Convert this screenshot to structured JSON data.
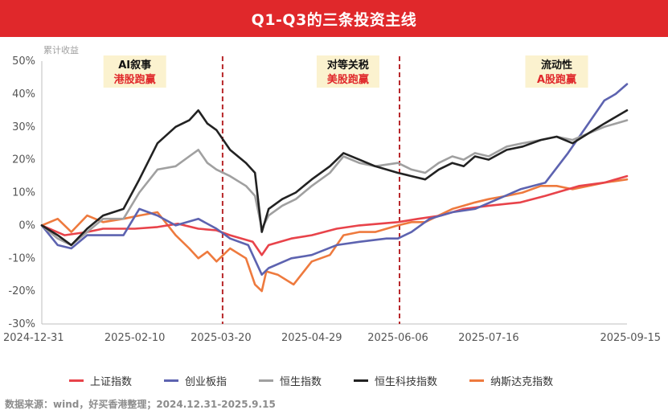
{
  "header": {
    "title": "Q1-Q3的三条投资主线"
  },
  "source": "数据来源：wind，好买香港整理；2024.12.31-2025.9.15",
  "colors": {
    "banner": "#e0282b",
    "shanghai": "#e8434a",
    "chinext": "#5d63b0",
    "hsi": "#a0a0a0",
    "hstech": "#222222",
    "nasdaq": "#ee7a3e",
    "divider": "#b8282b"
  },
  "chart_data": {
    "type": "line",
    "ylabel": "累计收益",
    "ylim": [
      -30,
      50
    ],
    "yticks": [
      -30,
      -20,
      -10,
      0,
      10,
      20,
      30,
      40,
      50
    ],
    "ytick_labels": [
      "-30%",
      "-20%",
      "-10%",
      "0%",
      "10%",
      "20%",
      "30%",
      "40%",
      "50%"
    ],
    "xlim": [
      "2024-12-31",
      "2025-09-15"
    ],
    "xticks": [
      "2024-12-31",
      "2025-02-10",
      "2025-03-20",
      "2025-04-29",
      "2025-06-06",
      "2025-07-16",
      "2025-09-15"
    ],
    "xtick_labels": [
      "2024-12-31",
      "2025-02-10",
      "2025-03-20",
      "2025-04-29",
      "2025-06-06",
      "2025-07-16",
      "2025-09-15"
    ],
    "dividers": [
      "2025-03-20",
      "2025-06-06"
    ],
    "annotations": [
      {
        "line1": "AI叙事",
        "line2": "港股跑赢",
        "at": "2025-02-10"
      },
      {
        "line1": "对等关税",
        "line2": "美股跑赢",
        "at": "2025-05-15"
      },
      {
        "line1": "流动性",
        "line2": "A股跑赢",
        "at": "2025-08-15"
      }
    ],
    "legend_position": "bottom",
    "series": [
      {
        "name": "上证指数",
        "color_key": "shanghai",
        "points": [
          [
            "2024-12-31",
            0
          ],
          [
            "2025-01-10",
            -3
          ],
          [
            "2025-01-20",
            -2
          ],
          [
            "2025-01-27",
            -1
          ],
          [
            "2025-02-10",
            -1
          ],
          [
            "2025-02-20",
            -0.5
          ],
          [
            "2025-03-01",
            0.5
          ],
          [
            "2025-03-10",
            -1
          ],
          [
            "2025-03-18",
            -1.5
          ],
          [
            "2025-03-24",
            -3
          ],
          [
            "2025-04-03",
            -5
          ],
          [
            "2025-04-07",
            -9
          ],
          [
            "2025-04-10",
            -6
          ],
          [
            "2025-04-20",
            -4
          ],
          [
            "2025-04-29",
            -3
          ],
          [
            "2025-05-10",
            -1
          ],
          [
            "2025-05-20",
            0
          ],
          [
            "2025-06-06",
            1
          ],
          [
            "2025-06-15",
            2
          ],
          [
            "2025-06-25",
            3
          ],
          [
            "2025-07-05",
            5
          ],
          [
            "2025-07-16",
            6
          ],
          [
            "2025-07-30",
            7
          ],
          [
            "2025-08-10",
            9
          ],
          [
            "2025-08-25",
            12
          ],
          [
            "2025-09-05",
            13
          ],
          [
            "2025-09-15",
            15
          ]
        ]
      },
      {
        "name": "创业板指",
        "color_key": "chinext",
        "points": [
          [
            "2024-12-31",
            0
          ],
          [
            "2025-01-07",
            -6
          ],
          [
            "2025-01-13",
            -7
          ],
          [
            "2025-01-20",
            -3
          ],
          [
            "2025-02-05",
            -3
          ],
          [
            "2025-02-12",
            5
          ],
          [
            "2025-02-20",
            3
          ],
          [
            "2025-02-28",
            0
          ],
          [
            "2025-03-10",
            2
          ],
          [
            "2025-03-18",
            -1
          ],
          [
            "2025-03-24",
            -4
          ],
          [
            "2025-04-01",
            -6
          ],
          [
            "2025-04-07",
            -15
          ],
          [
            "2025-04-10",
            -13
          ],
          [
            "2025-04-20",
            -10
          ],
          [
            "2025-04-29",
            -9
          ],
          [
            "2025-05-10",
            -6
          ],
          [
            "2025-05-20",
            -5
          ],
          [
            "2025-06-01",
            -4
          ],
          [
            "2025-06-06",
            -4
          ],
          [
            "2025-06-12",
            -2
          ],
          [
            "2025-06-20",
            2
          ],
          [
            "2025-06-30",
            4
          ],
          [
            "2025-07-10",
            5
          ],
          [
            "2025-07-20",
            8
          ],
          [
            "2025-07-30",
            11
          ],
          [
            "2025-08-10",
            13
          ],
          [
            "2025-08-20",
            22
          ],
          [
            "2025-08-28",
            30
          ],
          [
            "2025-09-05",
            38
          ],
          [
            "2025-09-10",
            40
          ],
          [
            "2025-09-15",
            43
          ]
        ]
      },
      {
        "name": "恒生指数",
        "color_key": "hsi",
        "points": [
          [
            "2024-12-31",
            0
          ],
          [
            "2025-01-07",
            -4
          ],
          [
            "2025-01-13",
            -6
          ],
          [
            "2025-01-20",
            -2
          ],
          [
            "2025-01-27",
            2
          ],
          [
            "2025-02-05",
            2
          ],
          [
            "2025-02-12",
            10
          ],
          [
            "2025-02-20",
            17
          ],
          [
            "2025-02-28",
            18
          ],
          [
            "2025-03-06",
            21
          ],
          [
            "2025-03-10",
            23
          ],
          [
            "2025-03-14",
            19
          ],
          [
            "2025-03-18",
            17
          ],
          [
            "2025-03-24",
            15
          ],
          [
            "2025-03-31",
            12
          ],
          [
            "2025-04-04",
            9
          ],
          [
            "2025-04-07",
            -1
          ],
          [
            "2025-04-10",
            3
          ],
          [
            "2025-04-16",
            6
          ],
          [
            "2025-04-22",
            8
          ],
          [
            "2025-04-29",
            12
          ],
          [
            "2025-05-07",
            16
          ],
          [
            "2025-05-13",
            21
          ],
          [
            "2025-05-20",
            19
          ],
          [
            "2025-05-27",
            18
          ],
          [
            "2025-06-06",
            19
          ],
          [
            "2025-06-12",
            17
          ],
          [
            "2025-06-18",
            16
          ],
          [
            "2025-06-24",
            19
          ],
          [
            "2025-06-30",
            21
          ],
          [
            "2025-07-05",
            20
          ],
          [
            "2025-07-10",
            22
          ],
          [
            "2025-07-16",
            21
          ],
          [
            "2025-07-24",
            24
          ],
          [
            "2025-07-31",
            25
          ],
          [
            "2025-08-08",
            26
          ],
          [
            "2025-08-15",
            27
          ],
          [
            "2025-08-22",
            26
          ],
          [
            "2025-08-29",
            28
          ],
          [
            "2025-09-05",
            30
          ],
          [
            "2025-09-15",
            32
          ]
        ]
      },
      {
        "name": "恒生科技指数",
        "color_key": "hstech",
        "points": [
          [
            "2024-12-31",
            0
          ],
          [
            "2025-01-07",
            -3
          ],
          [
            "2025-01-13",
            -6
          ],
          [
            "2025-01-20",
            -1
          ],
          [
            "2025-01-27",
            3
          ],
          [
            "2025-02-05",
            5
          ],
          [
            "2025-02-12",
            14
          ],
          [
            "2025-02-20",
            25
          ],
          [
            "2025-02-28",
            30
          ],
          [
            "2025-03-06",
            32
          ],
          [
            "2025-03-10",
            35
          ],
          [
            "2025-03-14",
            31
          ],
          [
            "2025-03-18",
            29
          ],
          [
            "2025-03-24",
            23
          ],
          [
            "2025-03-31",
            19
          ],
          [
            "2025-04-04",
            16
          ],
          [
            "2025-04-07",
            -2
          ],
          [
            "2025-04-10",
            5
          ],
          [
            "2025-04-16",
            8
          ],
          [
            "2025-04-22",
            10
          ],
          [
            "2025-04-29",
            14
          ],
          [
            "2025-05-07",
            18
          ],
          [
            "2025-05-13",
            22
          ],
          [
            "2025-05-20",
            20
          ],
          [
            "2025-05-27",
            18
          ],
          [
            "2025-06-06",
            16
          ],
          [
            "2025-06-12",
            15
          ],
          [
            "2025-06-18",
            14
          ],
          [
            "2025-06-24",
            17
          ],
          [
            "2025-06-30",
            19
          ],
          [
            "2025-07-05",
            18
          ],
          [
            "2025-07-10",
            21
          ],
          [
            "2025-07-16",
            20
          ],
          [
            "2025-07-24",
            23
          ],
          [
            "2025-07-31",
            24
          ],
          [
            "2025-08-08",
            26
          ],
          [
            "2025-08-15",
            27
          ],
          [
            "2025-08-22",
            25
          ],
          [
            "2025-08-29",
            28
          ],
          [
            "2025-09-05",
            31
          ],
          [
            "2025-09-15",
            35
          ]
        ]
      },
      {
        "name": "纳斯达克指数",
        "color_key": "nasdaq",
        "points": [
          [
            "2024-12-31",
            0
          ],
          [
            "2025-01-07",
            2
          ],
          [
            "2025-01-13",
            -2
          ],
          [
            "2025-01-20",
            3
          ],
          [
            "2025-01-27",
            1
          ],
          [
            "2025-02-05",
            2
          ],
          [
            "2025-02-12",
            3
          ],
          [
            "2025-02-20",
            4
          ],
          [
            "2025-02-28",
            -3
          ],
          [
            "2025-03-06",
            -7
          ],
          [
            "2025-03-10",
            -10
          ],
          [
            "2025-03-14",
            -8
          ],
          [
            "2025-03-18",
            -11
          ],
          [
            "2025-03-24",
            -7
          ],
          [
            "2025-03-31",
            -10
          ],
          [
            "2025-04-04",
            -18
          ],
          [
            "2025-04-07",
            -20
          ],
          [
            "2025-04-09",
            -14
          ],
          [
            "2025-04-14",
            -15
          ],
          [
            "2025-04-21",
            -18
          ],
          [
            "2025-04-29",
            -11
          ],
          [
            "2025-05-07",
            -9
          ],
          [
            "2025-05-13",
            -3
          ],
          [
            "2025-05-20",
            -2
          ],
          [
            "2025-05-27",
            -2
          ],
          [
            "2025-06-06",
            0
          ],
          [
            "2025-06-12",
            1
          ],
          [
            "2025-06-18",
            1
          ],
          [
            "2025-06-24",
            3
          ],
          [
            "2025-06-30",
            5
          ],
          [
            "2025-07-05",
            6
          ],
          [
            "2025-07-10",
            7
          ],
          [
            "2025-07-16",
            8
          ],
          [
            "2025-07-24",
            9
          ],
          [
            "2025-07-31",
            10
          ],
          [
            "2025-08-08",
            12
          ],
          [
            "2025-08-15",
            12
          ],
          [
            "2025-08-22",
            11
          ],
          [
            "2025-08-29",
            12
          ],
          [
            "2025-09-05",
            13
          ],
          [
            "2025-09-15",
            14
          ]
        ]
      }
    ]
  }
}
